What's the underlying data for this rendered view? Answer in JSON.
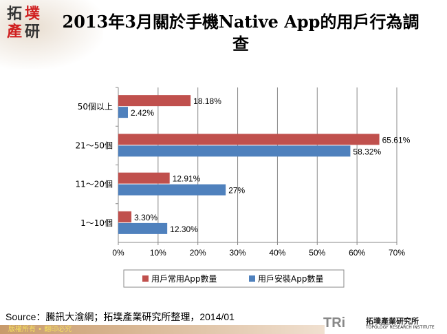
{
  "header": {
    "title": "2013年3月關於手機Native App的用戶行為調查",
    "logo_text": [
      "拓",
      "墣",
      "產",
      "研"
    ]
  },
  "chart_data": {
    "type": "bar",
    "orientation": "horizontal",
    "categories": [
      "50個以上",
      "21～50個",
      "11～20個",
      "1～10個"
    ],
    "series": [
      {
        "name": "用戶常用App數量",
        "values": [
          18.18,
          65.61,
          12.91,
          3.3
        ],
        "labels": [
          "18.18%",
          "65.61%",
          "12.91%",
          "3.30%"
        ],
        "color": "#c0504d"
      },
      {
        "name": "用戶安裝App數量",
        "values": [
          2.42,
          58.32,
          27,
          12.3
        ],
        "labels": [
          "2.42%",
          "58.32%",
          "27%",
          "12.30%"
        ],
        "color": "#4f81bd"
      }
    ],
    "xlim": [
      0,
      70
    ],
    "xticks": [
      "0%",
      "10%",
      "20%",
      "30%",
      "40%",
      "50%",
      "60%",
      "70%"
    ],
    "grid": true,
    "legend": "bottom"
  },
  "source": "Source：騰訊大渝網；拓墣產業研究所整理，2014/01",
  "footer": {
    "copyright": "版權所有 • 翻印必究",
    "brand_mark": "TRi",
    "brand_zh": "拓墣產業研究所",
    "brand_en": "TOPOLOGY RESEARCH INSTITUTE"
  }
}
